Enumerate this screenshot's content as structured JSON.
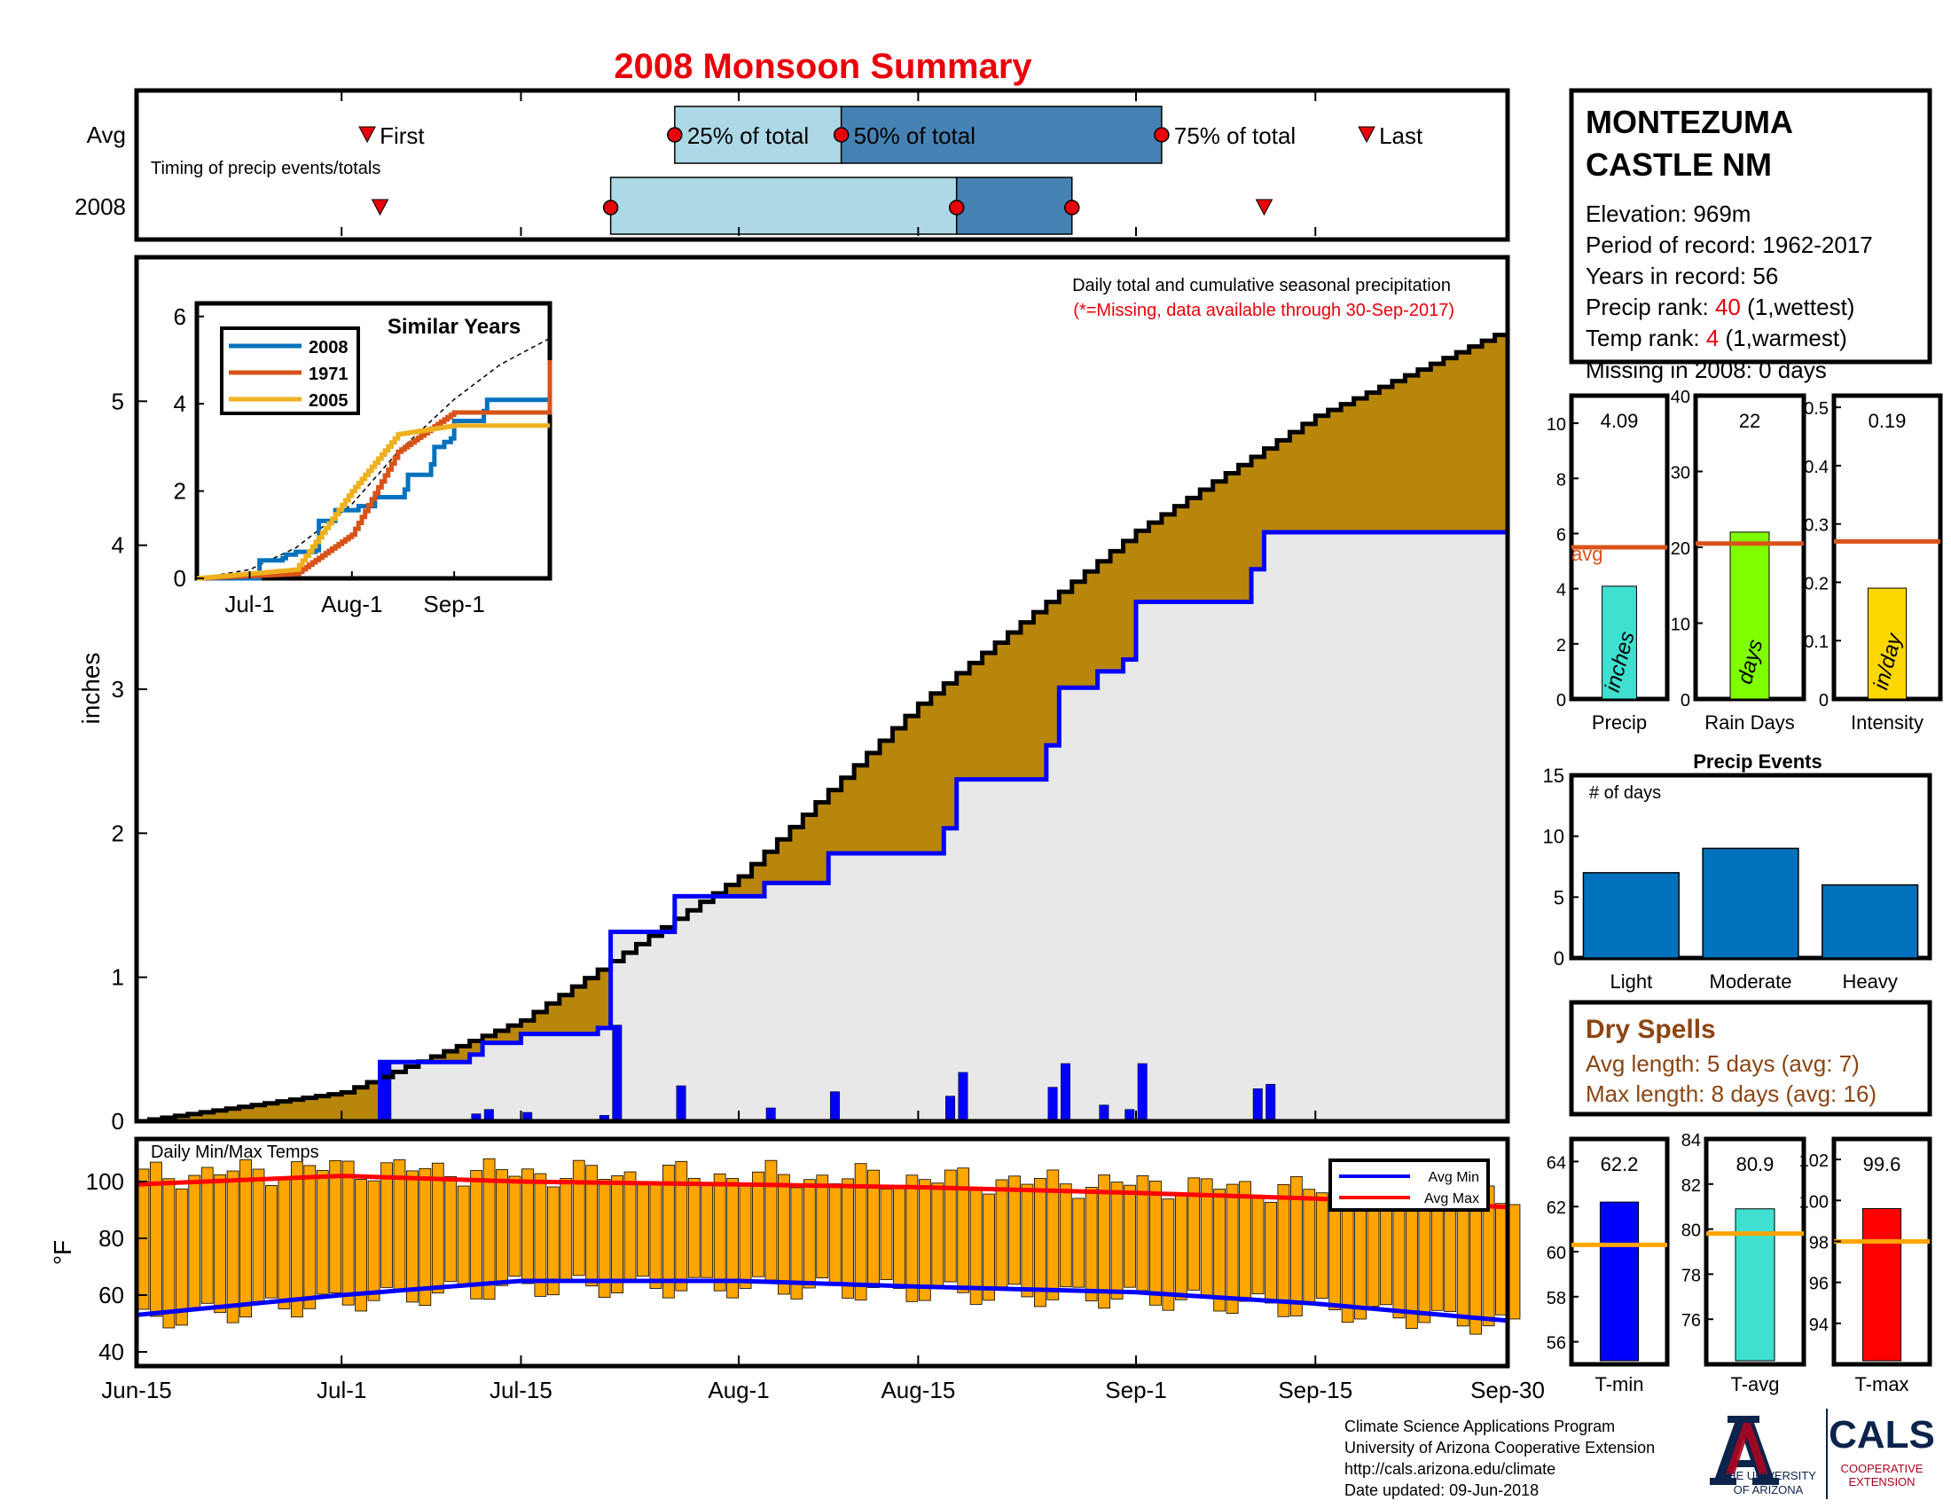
{
  "title": "2008 Monsoon Summary",
  "station": {
    "name_line1": "MONTEZUMA",
    "name_line2": "CASTLE NM",
    "elevation": "Elevation: 969m",
    "period": "Period of record: 1962-2017",
    "years": "Years in record: 56",
    "precip_rank_label": "Precip rank: ",
    "precip_rank_value": "40",
    "precip_rank_note": " (1,wettest)",
    "temp_rank_label": "Temp rank: ",
    "temp_rank_value": "4",
    "temp_rank_note": " (1,warmest)",
    "missing": "Missing in 2008: 0 days"
  },
  "timing": {
    "row_labels": [
      "Avg",
      "2008"
    ],
    "caption": "Timing of precip events/totals",
    "markers": [
      "First",
      "25% of total",
      "50% of total",
      "75% of total",
      "Last"
    ],
    "avg": {
      "first": "Jul-3",
      "p25": "Jul-27",
      "p50": "Aug-9",
      "p75": "Sep-3",
      "last": "Sep-19"
    },
    "y2008": {
      "first": "Jul-4",
      "p25": "Jul-22",
      "p50": "Aug-18",
      "p75": "Aug-27",
      "last": "Sep-11"
    }
  },
  "main": {
    "note": "Daily total and cumulative seasonal precipitation",
    "missing_note": "(*=Missing, data available through 30-Sep-2017)",
    "ylabel": "inches",
    "colors": {
      "avg_fill": "#b8860b",
      "fill_2008": "#e8e8e8",
      "line_2008": "#0000ff",
      "daily_bar": "#0000ff"
    }
  },
  "inset": {
    "title": "Similar Years",
    "legend": [
      "2008",
      "1971",
      "2005"
    ],
    "colors": [
      "#0072bd",
      "#d95319",
      "#edb120"
    ],
    "xticks": [
      "Jul-1",
      "Aug-1",
      "Sep-1"
    ],
    "yticks": [
      "0",
      "2",
      "4",
      "6"
    ]
  },
  "temps": {
    "title": "Daily Min/Max Temps",
    "legend": [
      "Avg Min",
      "Avg Max"
    ],
    "ylabel": "°F",
    "yticks": [
      "40",
      "60",
      "80",
      "100"
    ]
  },
  "xticks": [
    "Jun-15",
    "Jul-1",
    "Jul-15",
    "Aug-1",
    "Aug-15",
    "Sep-1",
    "Sep-15",
    "Sep-30"
  ],
  "small_bars": [
    {
      "name": "Precip",
      "value": 4.09,
      "label": "4.09",
      "unit": "inches",
      "avg": 5.5,
      "ymax": 11,
      "yticks": [
        "0",
        "2",
        "4",
        "6",
        "8",
        "10"
      ],
      "color": "#40e0d0"
    },
    {
      "name": "Rain Days",
      "value": 22,
      "label": "22",
      "unit": "days",
      "avg": 20.5,
      "ymax": 40,
      "yticks": [
        "0",
        "10",
        "20",
        "30",
        "40"
      ],
      "color": "#80ff00"
    },
    {
      "name": "Intensity",
      "value": 0.19,
      "label": "0.19",
      "unit": "in/day",
      "avg": 0.27,
      "ymax": 0.52,
      "yticks": [
        "0",
        "0.1",
        "0.2",
        "0.3",
        "0.4",
        "0.5"
      ],
      "color": "#ffd700"
    }
  ],
  "avg_label": "avg",
  "events": {
    "title": "Precip Events",
    "ylabel": "# of days",
    "categories": [
      "Light",
      "Moderate",
      "Heavy"
    ],
    "values": [
      7,
      9,
      6
    ],
    "yticks": [
      "0",
      "5",
      "10",
      "15"
    ]
  },
  "dry_spells": {
    "title": "Dry Spells",
    "avg_line": "Avg length: 5 days (avg: 7)",
    "max_line": "Max length: 8 days (avg: 16)"
  },
  "temp_bars": [
    {
      "name": "T-min",
      "value": 62.2,
      "label": "62.2",
      "avg": 60.3,
      "ylim": [
        55,
        65
      ],
      "yticks": [
        "56",
        "58",
        "60",
        "62",
        "64"
      ],
      "color": "#0000ff"
    },
    {
      "name": "T-avg",
      "value": 80.9,
      "label": "80.9",
      "avg": 79.8,
      "ylim": [
        74,
        84
      ],
      "yticks": [
        "76",
        "78",
        "80",
        "82",
        "84"
      ],
      "color": "#40e0d0"
    },
    {
      "name": "T-max",
      "value": 99.6,
      "label": "99.6",
      "avg": 98,
      "ylim": [
        92,
        103
      ],
      "yticks": [
        "94",
        "96",
        "98",
        "100",
        "102"
      ],
      "color": "#ff0000"
    }
  ],
  "footer": {
    "line1": "Climate Science Applications Program",
    "line2": "University of Arizona Cooperative Extension",
    "line3": "http://cals.arizona.edu/climate",
    "line4": "Date updated: 09-Jun-2018",
    "logo_left_line1": "THE UNIVERSITY",
    "logo_left_line2": "OF ARIZONA",
    "logo_right": "CALS",
    "logo_right_sub1": "COOPERATIVE",
    "logo_right_sub2": "EXTENSION"
  },
  "chart_data": [
    {
      "type": "line",
      "title": "Daily total and cumulative seasonal precipitation",
      "ylabel": "inches",
      "ylim": [
        0,
        6
      ],
      "x_range": [
        "Jun-15",
        "Sep-30"
      ],
      "series": [
        {
          "name": "",
          "x": [
            "Jun-15",
            "Jul-1",
            "Jul-15",
            "Aug-1",
            "Aug-15",
            "Sep-1",
            "Sep-15",
            "Sep-30"
          ],
          "values": [
            0,
            0.2,
            0.7,
            1.7,
            2.9,
            4.1,
            4.9,
            5.5
          ]
        },
        {
          "name": "2008",
          "x": [
            "Jun-15",
            "Jul-4",
            "Jul-22",
            "Aug-18",
            "Aug-27",
            "Sep-11",
            "Sep-30"
          ],
          "values": [
            0,
            0.4,
            1.3,
            2.4,
            3.6,
            4.09,
            4.09
          ]
        }
      ],
      "daily_precip_2008": [
        {
          "x": "Jul-4",
          "value": 0.4
        },
        {
          "x": "Jul-11",
          "value": 0.05
        },
        {
          "x": "Jul-12",
          "value": 0.08
        },
        {
          "x": "Jul-15",
          "value": 0.06
        },
        {
          "x": "Jul-21",
          "value": 0.04
        },
        {
          "x": "Jul-22",
          "value": 0.65
        },
        {
          "x": "Jul-27",
          "value": 0.24
        },
        {
          "x": "Aug-3",
          "value": 0.09
        },
        {
          "x": "Aug-8",
          "value": 0.2
        },
        {
          "x": "Aug-17",
          "value": 0.17
        },
        {
          "x": "Aug-18",
          "value": 0.33
        },
        {
          "x": "Aug-25",
          "value": 0.23
        },
        {
          "x": "Aug-26",
          "value": 0.39
        },
        {
          "x": "Aug-29",
          "value": 0.11
        },
        {
          "x": "Aug-31",
          "value": 0.08
        },
        {
          "x": "Sep-1",
          "value": 0.39
        },
        {
          "x": "Sep-10",
          "value": 0.22
        },
        {
          "x": "Sep-11",
          "value": 0.25
        }
      ]
    },
    {
      "type": "line",
      "title": "Similar Years",
      "ylim": [
        0,
        6
      ],
      "series": [
        {
          "name": "2008",
          "x": [
            "Jun-15",
            "Jul-4",
            "Jul-22",
            "Aug-18",
            "Aug-27",
            "Sep-11",
            "Sep-30"
          ],
          "values": [
            0,
            0.4,
            1.3,
            2.4,
            3.6,
            4.09,
            4.09
          ]
        },
        {
          "name": "1971",
          "x": [
            "Jun-15",
            "Jul-15",
            "Aug-1",
            "Aug-15",
            "Sep-1",
            "Sep-29",
            "Sep-30"
          ],
          "values": [
            0,
            0.1,
            1.0,
            2.9,
            3.8,
            3.8,
            5.0
          ]
        },
        {
          "name": "2005",
          "x": [
            "Jun-15",
            "Jul-15",
            "Aug-1",
            "Aug-15",
            "Sep-1",
            "Sep-30"
          ],
          "values": [
            0,
            0.2,
            2.0,
            3.3,
            3.5,
            3.5
          ]
        }
      ]
    },
    {
      "type": "bar",
      "title": "Daily Min/Max Temps",
      "ylabel": "°F",
      "ylim": [
        35,
        115
      ],
      "series": [
        {
          "name": "Avg Min",
          "x": [
            "Jun-15",
            "Jul-1",
            "Jul-15",
            "Aug-1",
            "Aug-15",
            "Sep-1",
            "Sep-15",
            "Sep-30"
          ],
          "values": [
            53,
            60,
            65,
            65,
            63,
            61,
            57,
            51
          ]
        },
        {
          "name": "Avg Max",
          "x": [
            "Jun-15",
            "Jul-1",
            "Jul-15",
            "Aug-1",
            "Aug-15",
            "Sep-1",
            "Sep-15",
            "Sep-30"
          ],
          "values": [
            99,
            102,
            100,
            99,
            98,
            96,
            94,
            91
          ]
        }
      ]
    },
    {
      "type": "bar",
      "title": "Precip Events",
      "ylabel": "# of days",
      "categories": [
        "Light",
        "Moderate",
        "Heavy"
      ],
      "values": [
        7,
        9,
        6
      ],
      "ylim": [
        0,
        15
      ]
    }
  ]
}
